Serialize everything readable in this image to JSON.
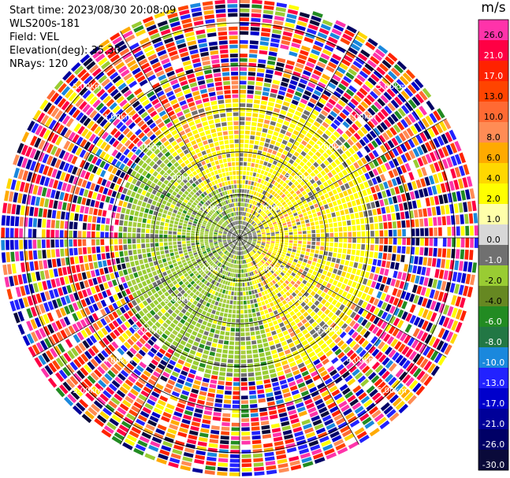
{
  "header": {
    "start_time": "Start time: 2023/08/30 20:08:09",
    "instrument": "WLS200s-181",
    "field": "Field: VEL",
    "elevation": "Elevation(deg): 35.30",
    "nrays": "NRays: 120"
  },
  "chart_data": {
    "type": "heatmap",
    "projection": "polar-ppi",
    "field": "VEL",
    "start_time": "2023/08/30 20:08:09",
    "elevation_deg": 35.3,
    "n_rays": 120,
    "range_rings_km": [
      1.0,
      2.0,
      3.0,
      4.0,
      5.0
    ],
    "ring_labels": [
      "1.00km",
      "2.00km",
      "3.00km",
      "4.00km",
      "5.00km"
    ],
    "colorbar": {
      "unit": "m/s",
      "ticks": [
        "26.0",
        "21.0",
        "17.0",
        "13.0",
        "10.0",
        "8.0",
        "6.0",
        "4.0",
        "2.0",
        "1.0",
        "0.0",
        "-1.0",
        "-2.0",
        "-4.0",
        "-6.0",
        "-8.0",
        "-10.0",
        "-13.0",
        "-17.0",
        "-21.0",
        "-26.0",
        "-30.0"
      ],
      "colors": [
        "#ff33aa",
        "#ff0044",
        "#ff2200",
        "#ff4400",
        "#ff6a33",
        "#ff8c55",
        "#ffaa00",
        "#ffd800",
        "#ffff00",
        "#ffffaa",
        "#d8d8d8",
        "#707070",
        "#99cc33",
        "#668822",
        "#228b22",
        "#227744",
        "#1a88dd",
        "#2222ff",
        "#0000cc",
        "#000099",
        "#000066",
        "#0a0a3a"
      ]
    },
    "regions": [
      {
        "sector": "west",
        "range_km": [
          0,
          2.9
        ],
        "dominant": "-2.0",
        "desc": "green/grey"
      },
      {
        "sector": "east",
        "range_km": [
          0,
          3.4
        ],
        "dominant": "2.0",
        "desc": "yellow"
      },
      {
        "sector": "south",
        "range_km": [
          0,
          3.3
        ],
        "dominant": "-2.0",
        "desc": "green"
      },
      {
        "sector": "north",
        "range_km": [
          0,
          3.2
        ],
        "dominant": "2.0",
        "desc": "yellow"
      },
      {
        "sector": "all",
        "range_km": [
          3.0,
          5.5
        ],
        "dominant": "noise",
        "desc": "random colors"
      }
    ]
  }
}
